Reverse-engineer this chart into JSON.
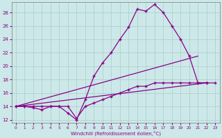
{
  "xlabel": "Windchill (Refroidissement éolien,°C)",
  "background_color": "#cce8e8",
  "grid_color": "#aacccc",
  "line_color": "#880088",
  "xlim_min": -0.5,
  "xlim_max": 23.5,
  "ylim_min": 11.5,
  "ylim_max": 29.5,
  "yticks": [
    12,
    14,
    16,
    18,
    20,
    22,
    24,
    26,
    28
  ],
  "xticks": [
    0,
    1,
    2,
    3,
    4,
    5,
    6,
    7,
    8,
    9,
    10,
    11,
    12,
    13,
    14,
    15,
    16,
    17,
    18,
    19,
    20,
    21,
    22,
    23
  ],
  "series_main_x": [
    0,
    1,
    2,
    3,
    4,
    5,
    6,
    7,
    8,
    9,
    10,
    11,
    12,
    13,
    14,
    15,
    16,
    17,
    18,
    19,
    20,
    21,
    22
  ],
  "series_main_y": [
    14,
    14,
    13.8,
    13.5,
    14,
    14,
    13,
    12,
    15,
    18.5,
    20.5,
    22,
    24,
    25.8,
    28.5,
    28.2,
    29.2,
    28,
    26,
    24,
    21.5,
    17.5,
    17.5
  ],
  "series_flat_x": [
    0,
    1,
    2,
    3,
    4,
    5,
    6,
    7,
    8,
    9,
    10,
    11,
    12,
    13,
    14,
    15,
    16,
    17,
    18,
    19,
    20,
    21,
    22,
    23
  ],
  "series_flat_y": [
    14,
    14,
    14,
    14,
    14,
    14,
    14,
    12.2,
    14,
    14.5,
    15,
    15.5,
    16,
    16.5,
    17,
    17,
    17.5,
    17.5,
    17.5,
    17.5,
    17.5,
    17.5,
    17.5,
    17.5
  ],
  "line1_x": [
    0,
    22
  ],
  "line1_y": [
    14,
    17.5
  ],
  "line2_x": [
    0,
    21
  ],
  "line2_y": [
    14,
    21.5
  ]
}
